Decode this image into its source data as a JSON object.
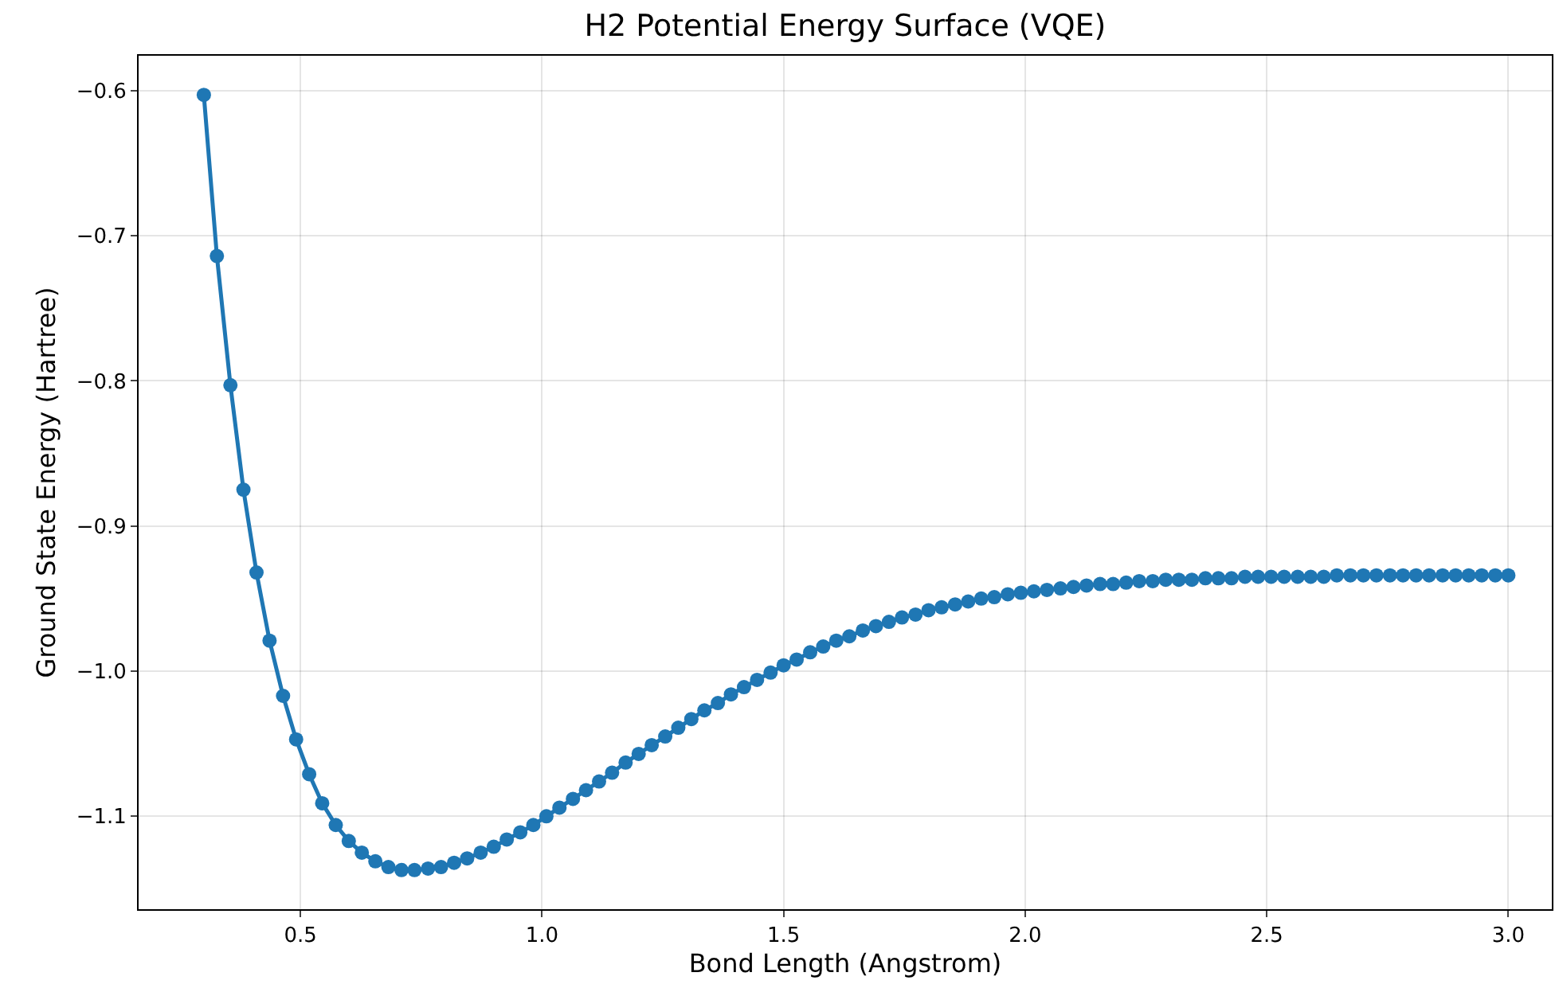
{
  "chart_data": {
    "type": "line",
    "title": "H2 Potential Energy Surface (VQE)",
    "xlabel": "Bond Length (Angstrom)",
    "ylabel": "Ground State Energy (Hartree)",
    "x": [
      0.3,
      0.327,
      0.355,
      0.382,
      0.409,
      0.436,
      0.464,
      0.491,
      0.518,
      0.545,
      0.573,
      0.6,
      0.627,
      0.655,
      0.682,
      0.709,
      0.736,
      0.764,
      0.791,
      0.818,
      0.845,
      0.873,
      0.9,
      0.927,
      0.955,
      0.982,
      1.009,
      1.036,
      1.064,
      1.091,
      1.118,
      1.145,
      1.173,
      1.2,
      1.227,
      1.255,
      1.282,
      1.309,
      1.336,
      1.364,
      1.391,
      1.418,
      1.445,
      1.473,
      1.5,
      1.527,
      1.555,
      1.582,
      1.609,
      1.636,
      1.664,
      1.691,
      1.718,
      1.745,
      1.773,
      1.8,
      1.827,
      1.855,
      1.882,
      1.909,
      1.936,
      1.964,
      1.991,
      2.018,
      2.045,
      2.073,
      2.1,
      2.127,
      2.155,
      2.182,
      2.209,
      2.236,
      2.264,
      2.291,
      2.318,
      2.345,
      2.373,
      2.4,
      2.427,
      2.455,
      2.482,
      2.509,
      2.536,
      2.564,
      2.591,
      2.618,
      2.645,
      2.673,
      2.7,
      2.727,
      2.755,
      2.782,
      2.809,
      2.836,
      2.864,
      2.891,
      2.918,
      2.945,
      2.973,
      3.0
    ],
    "series": [
      {
        "color": "#1f77b4",
        "values": [
          -0.603,
          -0.714,
          -0.803,
          -0.875,
          -0.932,
          -0.979,
          -1.017,
          -1.047,
          -1.071,
          -1.091,
          -1.106,
          -1.117,
          -1.125,
          -1.131,
          -1.135,
          -1.137,
          -1.137,
          -1.136,
          -1.135,
          -1.132,
          -1.129,
          -1.125,
          -1.121,
          -1.116,
          -1.111,
          -1.106,
          -1.1,
          -1.094,
          -1.088,
          -1.082,
          -1.076,
          -1.07,
          -1.063,
          -1.057,
          -1.051,
          -1.045,
          -1.039,
          -1.033,
          -1.027,
          -1.022,
          -1.016,
          -1.011,
          -1.006,
          -1.001,
          -0.996,
          -0.992,
          -0.987,
          -0.983,
          -0.979,
          -0.976,
          -0.972,
          -0.969,
          -0.966,
          -0.963,
          -0.961,
          -0.958,
          -0.956,
          -0.954,
          -0.952,
          -0.95,
          -0.949,
          -0.947,
          -0.946,
          -0.945,
          -0.944,
          -0.943,
          -0.942,
          -0.941,
          -0.94,
          -0.94,
          -0.939,
          -0.938,
          -0.938,
          -0.937,
          -0.937,
          -0.937,
          -0.936,
          -0.936,
          -0.936,
          -0.935,
          -0.935,
          -0.935,
          -0.935,
          -0.935,
          -0.935,
          -0.935,
          -0.934,
          -0.934,
          -0.934,
          -0.934,
          -0.934,
          -0.934,
          -0.934,
          -0.934,
          -0.934,
          -0.934,
          -0.934,
          -0.934,
          -0.934,
          -0.934
        ]
      }
    ],
    "xlim": [
      0.165,
      3.09
    ],
    "ylim": [
      -1.164,
      -0.576
    ],
    "xticks": [
      {
        "value": 0.5,
        "label": "0.5"
      },
      {
        "value": 1.0,
        "label": "1.0"
      },
      {
        "value": 1.5,
        "label": "1.5"
      },
      {
        "value": 2.0,
        "label": "2.0"
      },
      {
        "value": 2.5,
        "label": "2.5"
      },
      {
        "value": 3.0,
        "label": "3.0"
      }
    ],
    "yticks": [
      {
        "value": -1.1,
        "label": "−1.1"
      },
      {
        "value": -1.0,
        "label": "−1.0"
      },
      {
        "value": -0.9,
        "label": "−0.9"
      },
      {
        "value": -0.8,
        "label": "−0.8"
      },
      {
        "value": -0.7,
        "label": "−0.7"
      },
      {
        "value": -0.6,
        "label": "−0.6"
      }
    ],
    "grid": true,
    "marker": "circle",
    "line_style": "solid"
  }
}
